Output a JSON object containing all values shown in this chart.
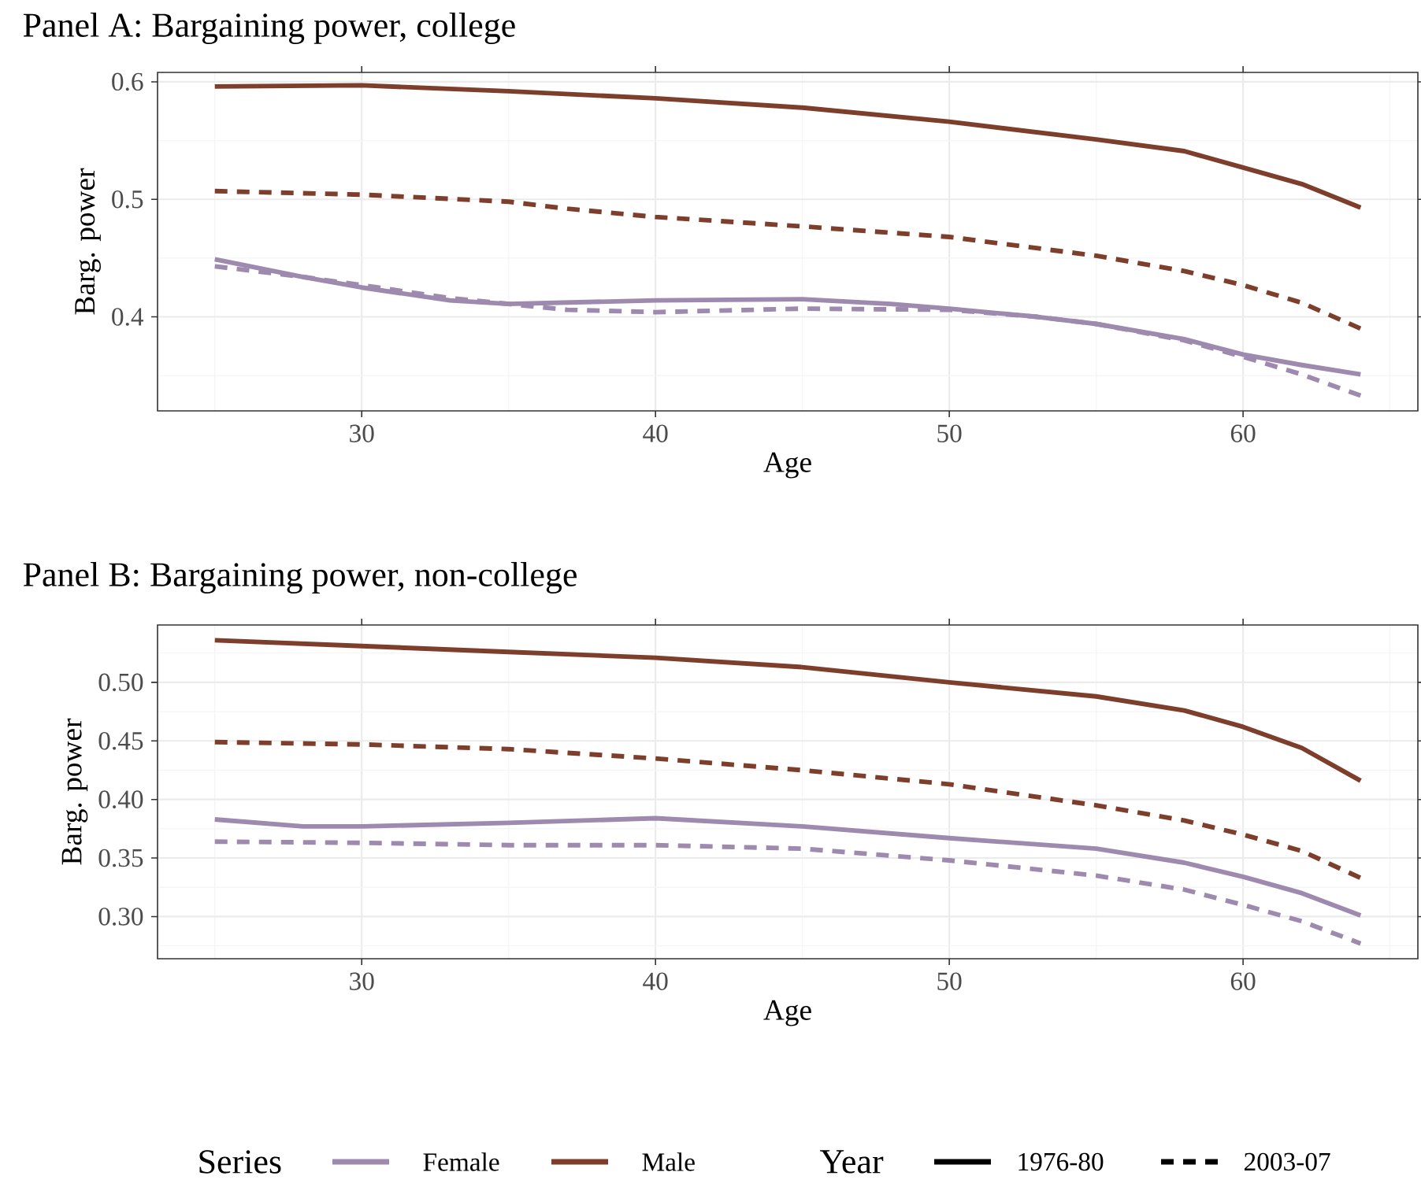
{
  "chart_data": [
    {
      "type": "line",
      "title": "Panel A: Bargaining power, college",
      "xlabel": "Age",
      "ylabel": "Barg. power",
      "xlim": [
        23.05,
        65.95
      ],
      "xticks": [
        30,
        40,
        50,
        60
      ],
      "ylim": [
        0.32,
        0.608
      ],
      "yticks": [
        0.4,
        0.5,
        0.6
      ],
      "grid": true,
      "series": [
        {
          "color": "#9e8aae",
          "line_style": "solid",
          "x": [
            25,
            28,
            30,
            33,
            35,
            40,
            45,
            48,
            50,
            53,
            55,
            58,
            60,
            62,
            64
          ],
          "values": [
            0.449,
            0.434,
            0.425,
            0.414,
            0.411,
            0.414,
            0.415,
            0.411,
            0.407,
            0.4,
            0.394,
            0.381,
            0.368,
            0.359,
            0.351
          ]
        },
        {
          "color": "#7d3f2c",
          "line_style": "solid",
          "x": [
            25,
            30,
            35,
            40,
            45,
            50,
            55,
            58,
            60,
            62,
            64
          ],
          "values": [
            0.596,
            0.597,
            0.592,
            0.586,
            0.578,
            0.566,
            0.551,
            0.541,
            0.527,
            0.513,
            0.493
          ]
        },
        {
          "color": "#9e8aae",
          "line_style": "dashed",
          "x": [
            25,
            28,
            30,
            33,
            35,
            37,
            40,
            45,
            50,
            53,
            55,
            58,
            60,
            62,
            64
          ],
          "values": [
            0.443,
            0.434,
            0.427,
            0.416,
            0.411,
            0.406,
            0.404,
            0.407,
            0.406,
            0.4,
            0.394,
            0.38,
            0.366,
            0.351,
            0.333
          ]
        },
        {
          "color": "#7d3f2c",
          "line_style": "dashed",
          "x": [
            25,
            30,
            35,
            37,
            40,
            45,
            50,
            55,
            58,
            60,
            62,
            64
          ],
          "values": [
            0.507,
            0.504,
            0.498,
            0.492,
            0.485,
            0.477,
            0.468,
            0.452,
            0.439,
            0.427,
            0.412,
            0.39
          ]
        }
      ]
    },
    {
      "type": "line",
      "title": "Panel B: Bargaining power, non-college",
      "xlabel": "Age",
      "ylabel": "Barg. power",
      "xlim": [
        23.05,
        65.95
      ],
      "xticks": [
        30,
        40,
        50,
        60
      ],
      "ylim": [
        0.264,
        0.549
      ],
      "yticks": [
        {
          "value": 0.3,
          "label": "0.30"
        },
        {
          "value": 0.35,
          "label": "0.35"
        },
        {
          "value": 0.4,
          "label": "0.40"
        },
        {
          "value": 0.45,
          "label": "0.45"
        },
        {
          "value": 0.5,
          "label": "0.50"
        }
      ],
      "grid": true,
      "legend": "bottom",
      "legend_title": "Series",
      "annotations": [
        "Year",
        "1976-80",
        "2003-07"
      ],
      "series": [
        {
          "name": "Female",
          "color": "#9e8aae",
          "line_style": "solid",
          "x": [
            25,
            28,
            30,
            35,
            40,
            45,
            50,
            55,
            58,
            60,
            62,
            64
          ],
          "values": [
            0.383,
            0.377,
            0.377,
            0.38,
            0.384,
            0.377,
            0.367,
            0.358,
            0.346,
            0.334,
            0.32,
            0.301
          ]
        },
        {
          "name": "Male",
          "color": "#7d3f2c",
          "line_style": "solid",
          "x": [
            25,
            30,
            35,
            40,
            45,
            50,
            55,
            58,
            60,
            62,
            64
          ],
          "values": [
            0.536,
            0.531,
            0.526,
            0.521,
            0.513,
            0.5,
            0.488,
            0.476,
            0.462,
            0.444,
            0.416
          ]
        },
        {
          "color": "#9e8aae",
          "line_style": "dashed",
          "x": [
            25,
            30,
            35,
            40,
            45,
            50,
            55,
            58,
            60,
            62,
            64
          ],
          "values": [
            0.364,
            0.363,
            0.361,
            0.361,
            0.358,
            0.348,
            0.335,
            0.323,
            0.31,
            0.296,
            0.277
          ]
        },
        {
          "color": "#7d3f2c",
          "line_style": "dashed",
          "x": [
            25,
            30,
            35,
            40,
            45,
            50,
            55,
            58,
            60,
            62,
            64
          ],
          "values": [
            0.449,
            0.447,
            0.443,
            0.435,
            0.425,
            0.413,
            0.395,
            0.382,
            0.37,
            0.356,
            0.333
          ]
        }
      ]
    }
  ]
}
